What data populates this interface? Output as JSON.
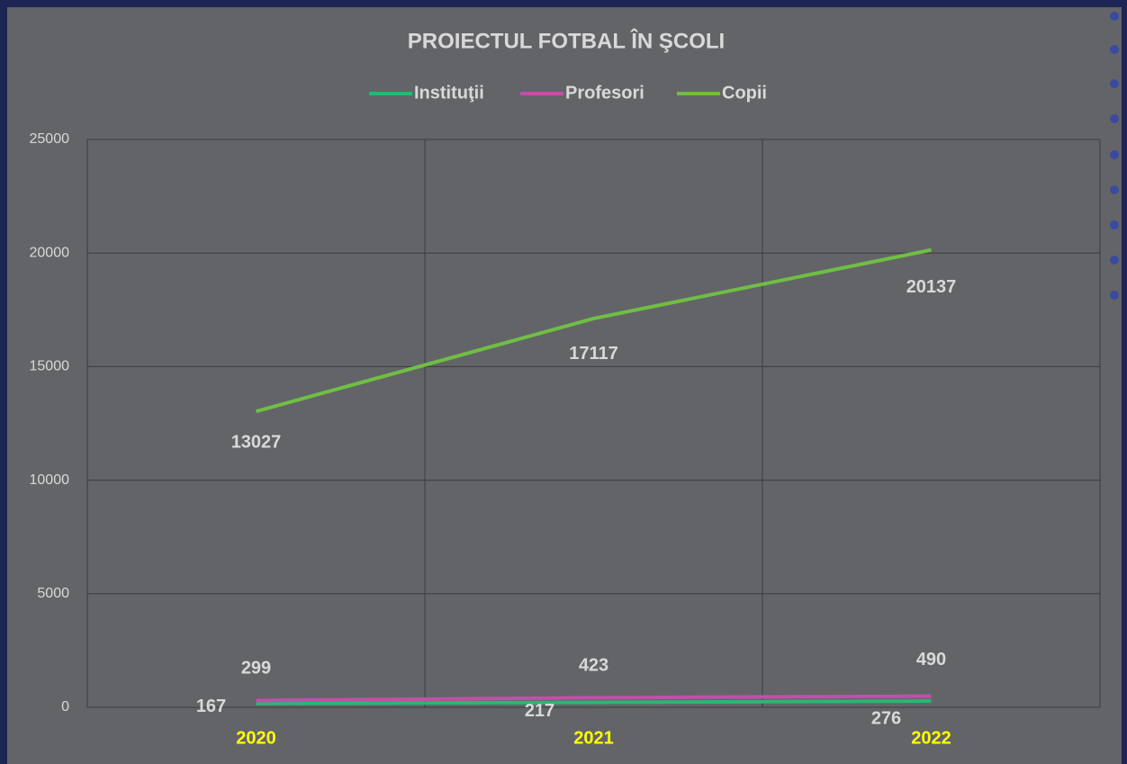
{
  "chart_data": {
    "type": "line",
    "title": "PROIECTUL FOTBAL ÎN ŞCOLI",
    "categories": [
      "2020",
      "2021",
      "2022"
    ],
    "series": [
      {
        "name": "Instituţii",
        "color": "#2bb673",
        "values": [
          167,
          217,
          276
        ]
      },
      {
        "name": "Profesori",
        "color": "#c050a8",
        "values": [
          299,
          423,
          490
        ]
      },
      {
        "name": "Copii",
        "color": "#6fbf44",
        "values": [
          13027,
          17117,
          20137
        ]
      }
    ],
    "ylim": [
      0,
      25000
    ],
    "yticks": [
      0,
      5000,
      10000,
      15000,
      20000,
      25000
    ],
    "grid": true
  }
}
